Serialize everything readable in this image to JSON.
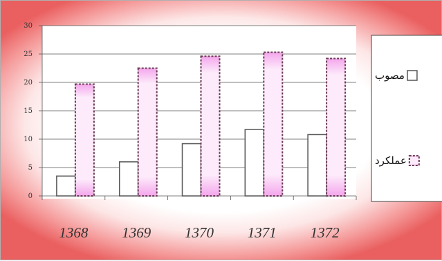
{
  "chart_data": {
    "type": "bar",
    "categories": [
      "1368",
      "1369",
      "1370",
      "1371",
      "1372"
    ],
    "series": [
      {
        "name": "مصوب",
        "values": [
          3.5,
          6,
          9.2,
          11.7,
          10.8
        ],
        "color": "#ffffff",
        "stroke": "#555555"
      },
      {
        "name": "عملکرد",
        "values": [
          19.7,
          22.5,
          24.6,
          25.3,
          24.2
        ],
        "color": "#f7b8f0",
        "stroke": "#6b3a55"
      }
    ],
    "yticks": [
      0,
      5,
      10,
      15,
      20,
      25,
      30
    ],
    "ylim": [
      0,
      30
    ],
    "grid": true,
    "legend_position": "right",
    "title": "",
    "xlabel": "",
    "ylabel": ""
  }
}
